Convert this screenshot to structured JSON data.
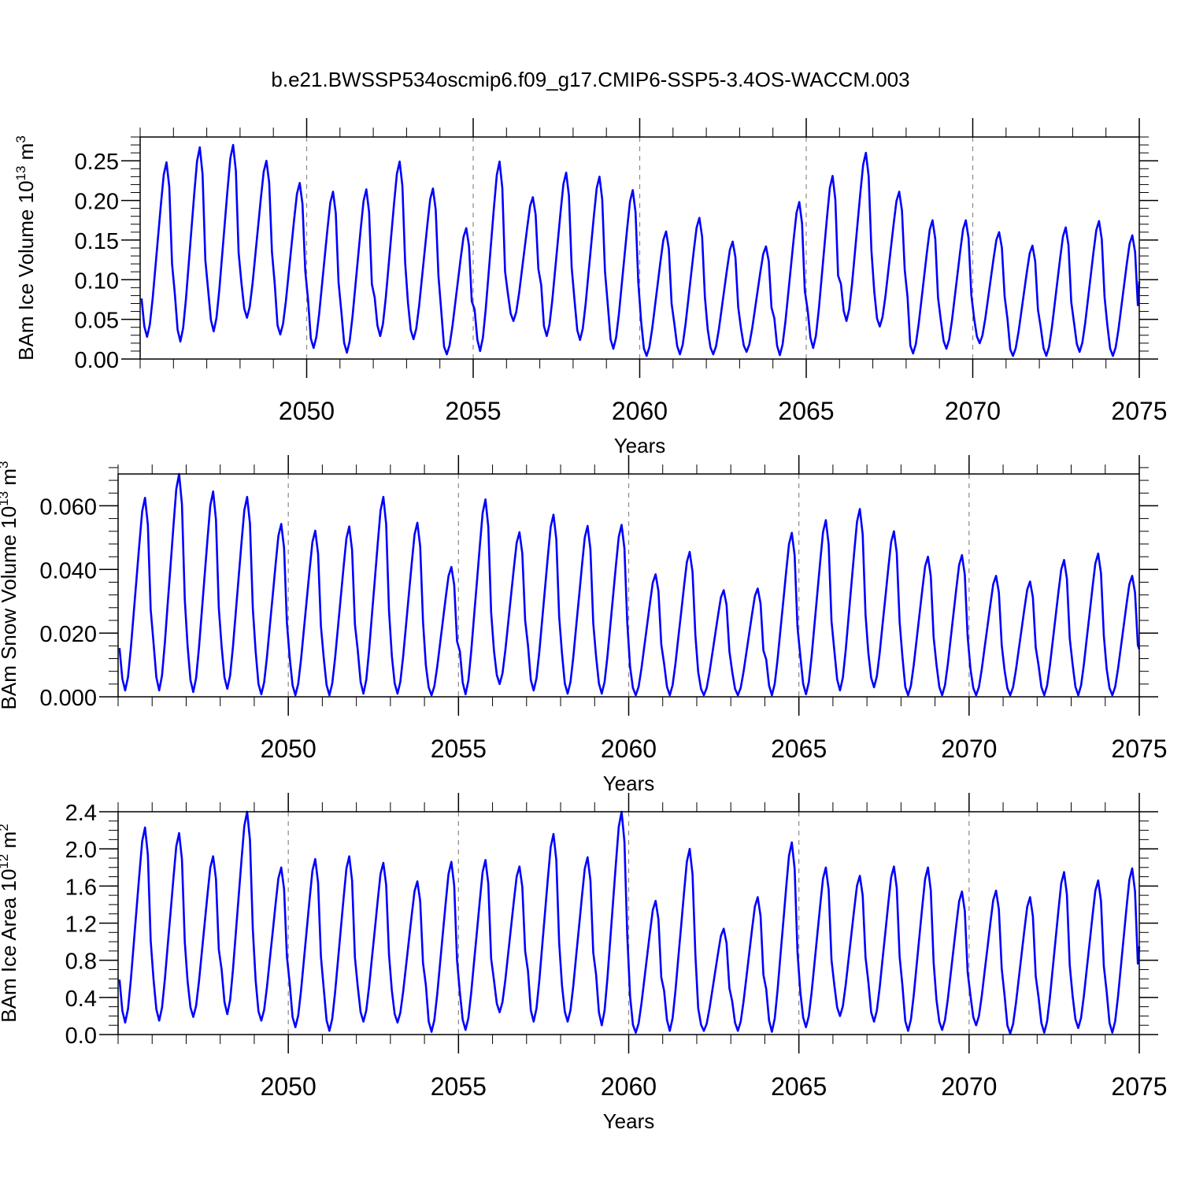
{
  "title": "b.e21.BWSSP534oscmip6.f09_g17.CMIP6-SSP5-3.4OS-WACCM.003",
  "colors": {
    "line": "#0000ff",
    "axes": "#000000",
    "grid": "#888888"
  },
  "chart_data": [
    {
      "type": "line",
      "xlabel": "Years",
      "ylabel_main": "BAm Ice Volume 10",
      "ylabel_sup1": "13",
      "ylabel_unit": " m",
      "ylabel_sup2": "3",
      "xlim": [
        2045.0,
        2075.0
      ],
      "ylim": [
        0.0,
        0.28
      ],
      "xticks": [
        2050,
        2055,
        2060,
        2065,
        2070,
        2075
      ],
      "yticks": [
        0.0,
        0.05,
        0.1,
        0.15,
        0.2,
        0.25
      ],
      "ytick_labels": [
        "0.00",
        "0.05",
        "0.10",
        "0.15",
        "0.20",
        "0.25"
      ],
      "ytick_minor": 0.01,
      "grid_x": [
        2050,
        2055,
        2060,
        2065,
        2070
      ],
      "monthly": {
        "start_year": 2045,
        "annual_min": [
          0.028,
          0.022,
          0.035,
          0.052,
          0.031,
          0.014,
          0.008,
          0.029,
          0.025,
          0.006,
          0.01,
          0.048,
          0.029,
          0.024,
          0.013,
          0.004,
          0.006,
          0.006,
          0.009,
          0.005,
          0.014,
          0.048,
          0.041,
          0.007,
          0.013,
          0.02,
          0.004,
          0.004,
          0.009,
          0.004
        ],
        "annual_max": [
          0.248,
          0.267,
          0.27,
          0.25,
          0.222,
          0.211,
          0.214,
          0.249,
          0.215,
          0.165,
          0.249,
          0.204,
          0.235,
          0.23,
          0.213,
          0.161,
          0.178,
          0.148,
          0.142,
          0.198,
          0.231,
          0.26,
          0.211,
          0.175,
          0.175,
          0.16,
          0.143,
          0.166,
          0.174,
          0.156
        ],
        "end_value": 0.098
      }
    },
    {
      "type": "line",
      "xlabel": "Years",
      "ylabel_main": "BAm Snow Volume 10",
      "ylabel_sup1": "13",
      "ylabel_unit": " m",
      "ylabel_sup2": "3",
      "xlim": [
        2045.0,
        2075.0
      ],
      "ylim": [
        0.0,
        0.07
      ],
      "xticks": [
        2050,
        2055,
        2060,
        2065,
        2070,
        2075
      ],
      "yticks": [
        0.0,
        0.02,
        0.04,
        0.06
      ],
      "ytick_labels": [
        "0.000",
        "0.020",
        "0.040",
        "0.060"
      ],
      "ytick_minor": 0.004,
      "grid_x": [
        2050,
        2055,
        2060,
        2065,
        2070
      ],
      "monthly": {
        "start_year": 2045,
        "annual_min": [
          0.002,
          0.002,
          0.0015,
          0.0025,
          0.0008,
          0.0005,
          0.0005,
          0.001,
          0.001,
          0.0005,
          0.0008,
          0.004,
          0.002,
          0.001,
          0.001,
          0.0005,
          0.0005,
          0.0005,
          0.0005,
          0.0005,
          0.0008,
          0.002,
          0.003,
          0.0005,
          0.0005,
          0.0005,
          0.0005,
          0.0005,
          0.0005,
          0.0005
        ],
        "annual_max": [
          0.0625,
          0.07,
          0.0645,
          0.0628,
          0.0543,
          0.0522,
          0.0535,
          0.0628,
          0.0547,
          0.0408,
          0.062,
          0.0517,
          0.0572,
          0.0537,
          0.054,
          0.0385,
          0.0455,
          0.0335,
          0.034,
          0.0515,
          0.0555,
          0.059,
          0.052,
          0.044,
          0.0445,
          0.038,
          0.0362,
          0.043,
          0.045,
          0.038
        ],
        "end_value": 0.015
      }
    },
    {
      "type": "line",
      "xlabel": "Years",
      "ylabel_main": "BAm Ice Area 10",
      "ylabel_sup1": "12",
      "ylabel_unit": " m",
      "ylabel_sup2": "2",
      "xlim": [
        2045.0,
        2075.0
      ],
      "ylim": [
        0.0,
        2.4
      ],
      "xticks": [
        2050,
        2055,
        2060,
        2065,
        2070,
        2075
      ],
      "yticks": [
        0.0,
        0.4,
        0.8,
        1.2,
        1.6,
        2.0,
        2.4
      ],
      "ytick_labels": [
        "0.0",
        "0.4",
        "0.8",
        "1.2",
        "1.6",
        "2.0",
        "2.4"
      ],
      "ytick_minor": 0.1,
      "grid_x": [
        2050,
        2055,
        2060,
        2065,
        2070
      ],
      "monthly": {
        "start_year": 2045,
        "annual_min": [
          0.13,
          0.15,
          0.19,
          0.22,
          0.15,
          0.08,
          0.04,
          0.14,
          0.13,
          0.03,
          0.05,
          0.24,
          0.14,
          0.14,
          0.1,
          0.02,
          0.04,
          0.04,
          0.04,
          0.03,
          0.08,
          0.2,
          0.14,
          0.04,
          0.05,
          0.1,
          0.01,
          0.02,
          0.07,
          0.02
        ],
        "annual_max": [
          2.23,
          2.17,
          1.92,
          2.4,
          1.8,
          1.89,
          1.92,
          1.85,
          1.65,
          1.86,
          1.88,
          1.81,
          2.16,
          1.91,
          2.4,
          1.44,
          2.0,
          1.14,
          1.48,
          2.07,
          1.8,
          1.71,
          1.81,
          1.8,
          1.54,
          1.55,
          1.48,
          1.75,
          1.66,
          1.79
        ],
        "end_value": 0.95
      }
    }
  ]
}
